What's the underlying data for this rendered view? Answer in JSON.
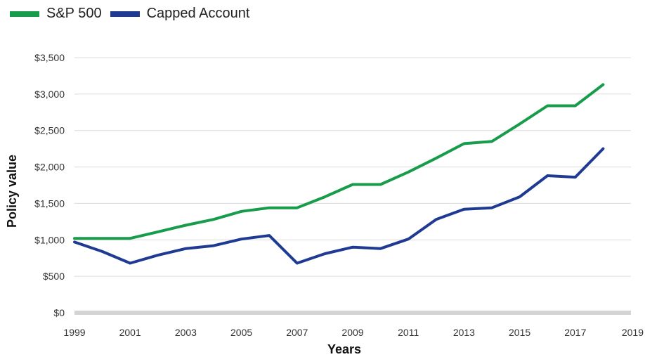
{
  "chart_data": {
    "type": "line",
    "xlabel": "Years",
    "ylabel": "Policy value",
    "xlim": [
      1999,
      2019
    ],
    "ylim": [
      0,
      3500
    ],
    "x_ticks": [
      1999,
      2001,
      2003,
      2005,
      2007,
      2009,
      2011,
      2013,
      2015,
      2017,
      2019
    ],
    "x_tick_labels": [
      "1999",
      "2001",
      "2003",
      "2005",
      "2007",
      "2009",
      "2011",
      "2013",
      "2015",
      "2017",
      "2019"
    ],
    "y_ticks": [
      0,
      500,
      1000,
      1500,
      2000,
      2500,
      3000,
      3500
    ],
    "y_tick_labels": [
      "$0",
      "$500",
      "$1,000",
      "$1,500",
      "$2,000",
      "$2,500",
      "$3,000",
      "$3,500"
    ],
    "grid": true,
    "legend_position": "top-left",
    "x": [
      1999,
      2000,
      2001,
      2002,
      2003,
      2004,
      2005,
      2006,
      2007,
      2008,
      2009,
      2010,
      2011,
      2012,
      2013,
      2014,
      2015,
      2016,
      2017,
      2018,
      2019
    ],
    "series": [
      {
        "name": "S&P 500",
        "color": "#169c4a",
        "values": [
          1020,
          1020,
          1020,
          1110,
          1200,
          1280,
          1390,
          1440,
          1440,
          1590,
          1760,
          1760,
          1930,
          2120,
          2320,
          2350,
          2590,
          2840,
          2840,
          3130,
          null
        ]
      },
      {
        "name": "Capped Account",
        "color": "#1f3a93",
        "values": [
          970,
          840,
          680,
          790,
          880,
          920,
          1010,
          1060,
          680,
          810,
          900,
          880,
          1010,
          1280,
          1420,
          1440,
          1590,
          1880,
          1860,
          2250,
          null
        ]
      }
    ]
  }
}
